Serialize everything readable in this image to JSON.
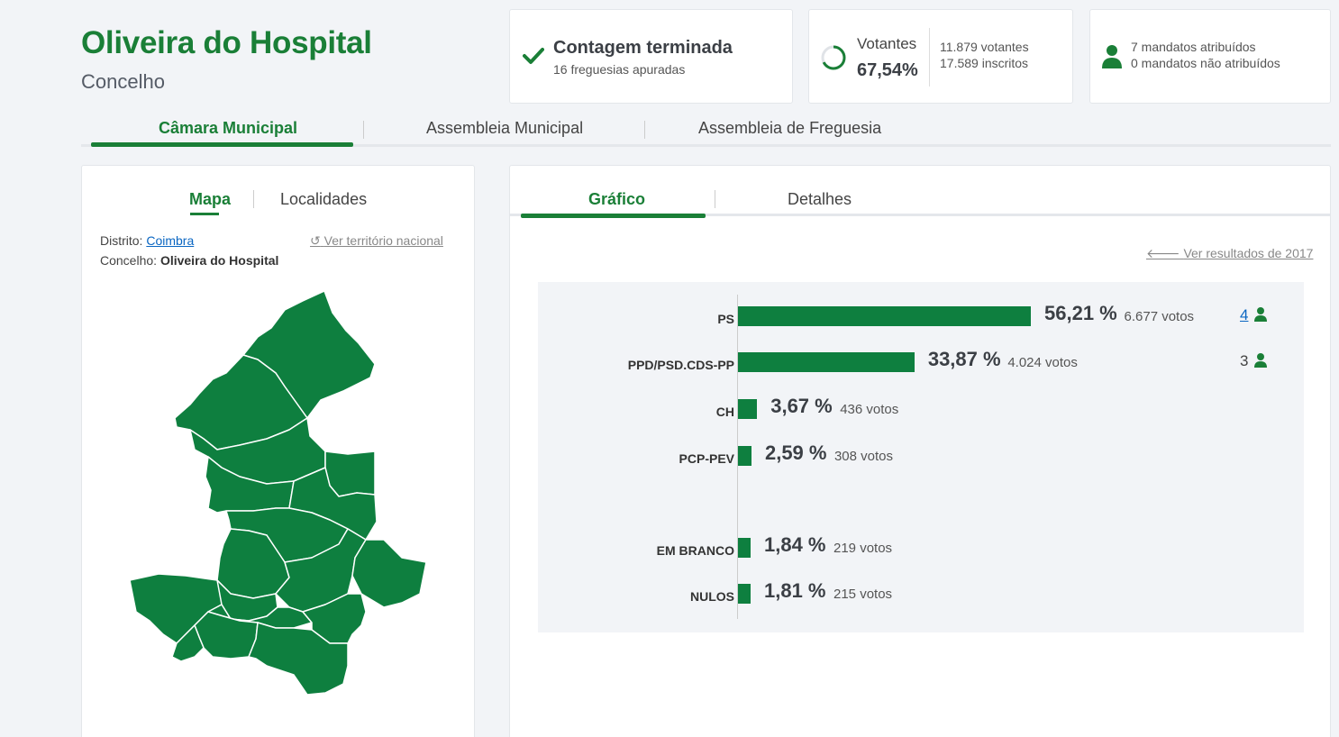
{
  "header": {
    "title": "Oliveira do Hospital",
    "subtitle": "Concelho"
  },
  "summary": {
    "counting": {
      "title": "Contagem terminada",
      "detail": "16 freguesias apuradas",
      "icon": "check-icon"
    },
    "turnout": {
      "label": "Votantes",
      "percent": "67,54%",
      "voters": "11.879 votantes",
      "registered": "17.589 inscritos",
      "fraction": 0.6754
    },
    "mandates": {
      "assigned": "7 mandatos atribuídos",
      "unassigned": "0 mandatos não atribuídos"
    }
  },
  "tabs": [
    "Câmara Municipal",
    "Assembleia Municipal",
    "Assembleia de Freguesia"
  ],
  "left_panel": {
    "tabs": [
      "Mapa",
      "Localidades"
    ],
    "district_label": "Distrito:",
    "district_value": "Coimbra",
    "council_label": "Concelho:",
    "council_value": "Oliveira do Hospital",
    "national_link": "Ver território nacional"
  },
  "right_panel": {
    "tabs": [
      "Gráfico",
      "Detalhes"
    ],
    "previous_link": "Ver resultados de 2017"
  },
  "chart_data": {
    "type": "bar",
    "orientation": "horizontal",
    "categories": [
      "PS",
      "PPD/PSD.CDS-PP",
      "CH",
      "PCP-PEV",
      "EM BRANCO",
      "NULOS"
    ],
    "values": [
      56.21,
      33.87,
      3.67,
      2.59,
      1.84,
      1.81
    ],
    "percent_labels": [
      "56,21 %",
      "33,87 %",
      "3,67 %",
      "2,59 %",
      "1,84 %",
      "1,81 %"
    ],
    "votes_labels": [
      "6.677 votos",
      "4.024 votos",
      "436 votos",
      "308 votos",
      "219 votos",
      "215 votos"
    ],
    "seats": [
      "4",
      "3",
      "",
      "",
      "",
      ""
    ],
    "color": "#0e7f3f"
  },
  "colors": {
    "accent": "#1a7f37",
    "bar": "#0e7f3f",
    "link": "#0a66c2"
  }
}
